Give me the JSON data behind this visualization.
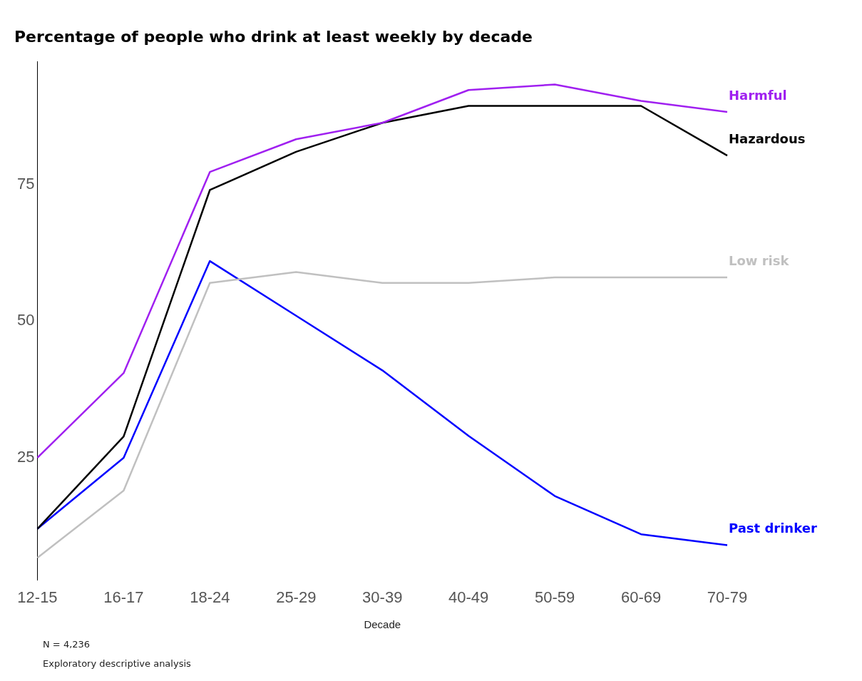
{
  "chart_data": {
    "type": "line",
    "title": "Percentage of people who drink at least weekly by decade",
    "xlabel": "Decade",
    "categories": [
      "12-15",
      "16-17",
      "18-24",
      "25-29",
      "30-39",
      "40-49",
      "50-59",
      "60-69",
      "70-79"
    ],
    "series": [
      {
        "name": "Harmful",
        "color": "#a020f0",
        "values": [
          25,
          40.5,
          77.3,
          83.3,
          86.3,
          92.3,
          93.3,
          90.3,
          88.3
        ]
      },
      {
        "name": "Hazardous",
        "color": "#000000",
        "values": [
          12,
          28.9,
          74,
          81,
          86.3,
          89.4,
          89.4,
          89.4,
          80.3
        ]
      },
      {
        "name": "Low risk",
        "color": "#c0c0c0",
        "values": [
          6.7,
          19,
          57,
          59,
          57,
          57,
          58,
          58,
          58
        ]
      },
      {
        "name": "Past drinker",
        "color": "#0000ff",
        "values": [
          12,
          25,
          61,
          51,
          41,
          29,
          18,
          11,
          9
        ]
      }
    ],
    "ylim": [
      2.6,
      97.5
    ],
    "yticks": [
      25,
      50,
      75
    ],
    "grid": false,
    "legend": false,
    "marker": "none",
    "line_style": "solid",
    "annotations": [
      "N = 4,236",
      "Exploratory descriptive analysis"
    ]
  }
}
